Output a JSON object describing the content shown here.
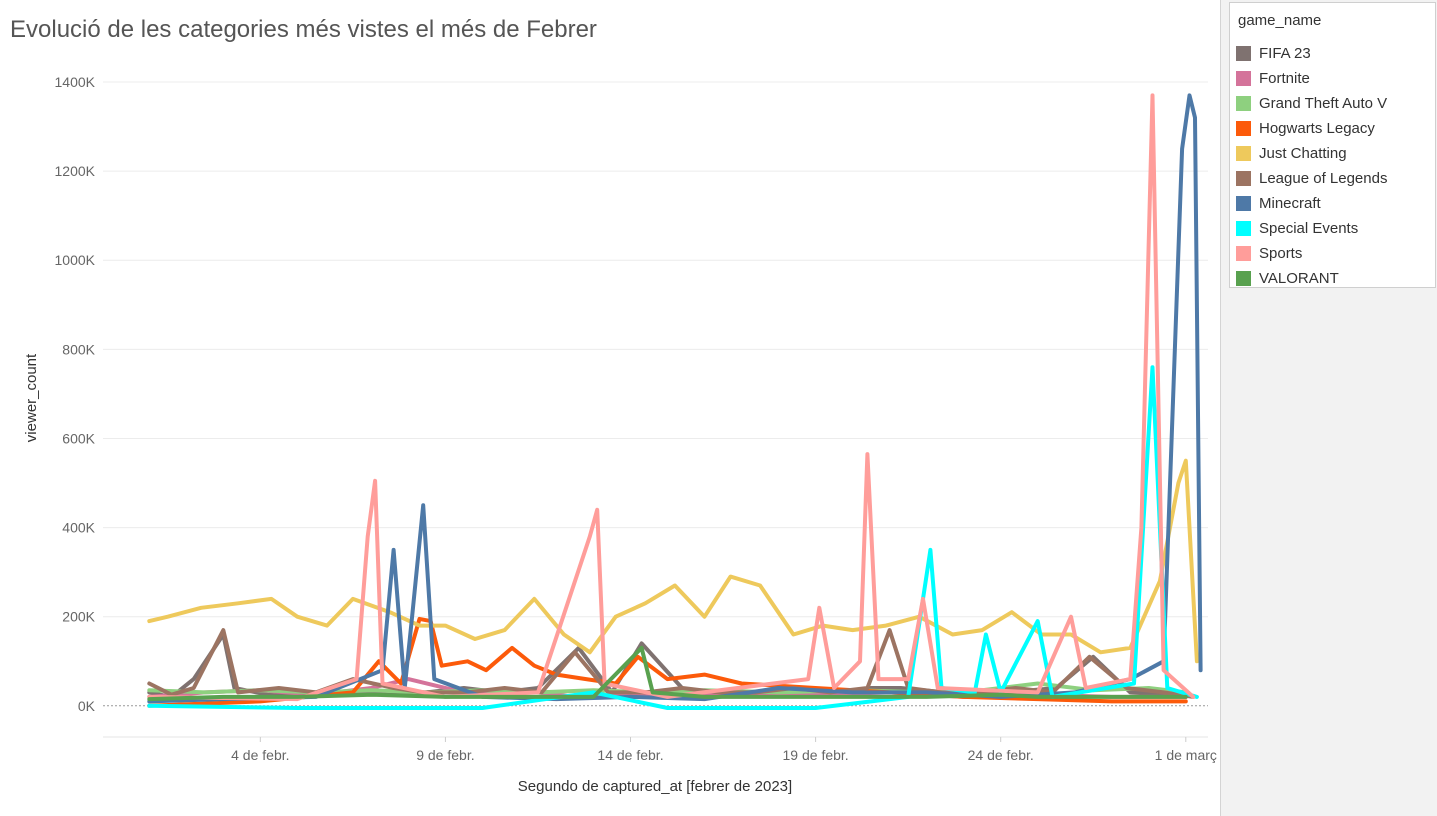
{
  "chart_data": {
    "type": "line",
    "title": "Evolució de les categories més vistes el més de Febrer",
    "xlabel": "Segundo de captured_at [febrer de 2023]",
    "ylabel": "viewer_count",
    "ylim": [
      -70000,
      1400000
    ],
    "xlim": [
      -0.25,
      29.6
    ],
    "x_unit": "days of February 2023 (1 = 1 de febr.)",
    "y_ticks": [
      {
        "value": 0,
        "label": "0K"
      },
      {
        "value": 200000,
        "label": "200K"
      },
      {
        "value": 400000,
        "label": "400K"
      },
      {
        "value": 600000,
        "label": "600K"
      },
      {
        "value": 800000,
        "label": "800K"
      },
      {
        "value": 1000000,
        "label": "1000K"
      },
      {
        "value": 1200000,
        "label": "1200K"
      },
      {
        "value": 1400000,
        "label": "1400K"
      }
    ],
    "x_ticks": [
      {
        "value": 4,
        "label": "4 de febr."
      },
      {
        "value": 9,
        "label": "9 de febr."
      },
      {
        "value": 14,
        "label": "14 de febr."
      },
      {
        "value": 19,
        "label": "19 de febr."
      },
      {
        "value": 24,
        "label": "24 de febr."
      },
      {
        "value": 29,
        "label": "1 de març"
      }
    ],
    "grid": true,
    "legend_position": "right",
    "legend_title": "game_name",
    "series": [
      {
        "name": "FIFA 23",
        "color": "#7f7270",
        "points": [
          [
            1.0,
            30000
          ],
          [
            1.6,
            20000
          ],
          [
            2.2,
            60000
          ],
          [
            3.0,
            160000
          ],
          [
            3.3,
            40000
          ],
          [
            4.2,
            25000
          ],
          [
            5.2,
            20000
          ],
          [
            6.4,
            30000
          ],
          [
            7.5,
            25000
          ],
          [
            8.5,
            30000
          ],
          [
            9.5,
            40000
          ],
          [
            10.5,
            30000
          ],
          [
            11.5,
            40000
          ],
          [
            12.6,
            130000
          ],
          [
            13.5,
            30000
          ],
          [
            14.3,
            140000
          ],
          [
            15.5,
            30000
          ],
          [
            17.5,
            25000
          ],
          [
            19.5,
            30000
          ],
          [
            20.5,
            40000
          ],
          [
            21.3,
            40000
          ],
          [
            22.5,
            30000
          ],
          [
            23.5,
            25000
          ],
          [
            25.5,
            40000
          ],
          [
            26.5,
            110000
          ],
          [
            27.5,
            30000
          ],
          [
            28.5,
            25000
          ],
          [
            29.0,
            20000
          ]
        ]
      },
      {
        "name": "Fortnite",
        "color": "#d4739a",
        "points": [
          [
            1.0,
            20000
          ],
          [
            2.5,
            30000
          ],
          [
            4.0,
            35000
          ],
          [
            5.5,
            25000
          ],
          [
            7.0,
            40000
          ],
          [
            8.0,
            60000
          ],
          [
            9.5,
            30000
          ],
          [
            11.0,
            35000
          ],
          [
            12.5,
            20000
          ],
          [
            14.0,
            25000
          ],
          [
            15.5,
            20000
          ],
          [
            17.0,
            30000
          ],
          [
            19.0,
            25000
          ],
          [
            21.0,
            30000
          ],
          [
            23.0,
            20000
          ],
          [
            25.0,
            25000
          ],
          [
            27.0,
            20000
          ],
          [
            29.0,
            20000
          ]
        ]
      },
      {
        "name": "Grand Theft Auto V",
        "color": "#8ed07f",
        "points": [
          [
            1.0,
            35000
          ],
          [
            2.5,
            30000
          ],
          [
            4.0,
            35000
          ],
          [
            5.5,
            30000
          ],
          [
            7.0,
            35000
          ],
          [
            8.5,
            30000
          ],
          [
            10.0,
            35000
          ],
          [
            11.5,
            30000
          ],
          [
            13.0,
            35000
          ],
          [
            14.5,
            30000
          ],
          [
            16.0,
            35000
          ],
          [
            18.0,
            30000
          ],
          [
            20.0,
            35000
          ],
          [
            22.0,
            30000
          ],
          [
            23.5,
            35000
          ],
          [
            25.0,
            50000
          ],
          [
            26.5,
            35000
          ],
          [
            28.0,
            40000
          ],
          [
            29.0,
            30000
          ]
        ]
      },
      {
        "name": "Hogwarts Legacy",
        "color": "#fc5a0a",
        "points": [
          [
            1.0,
            0
          ],
          [
            4.0,
            10000
          ],
          [
            6.5,
            30000
          ],
          [
            7.2,
            100000
          ],
          [
            7.8,
            50000
          ],
          [
            8.3,
            195000
          ],
          [
            8.6,
            190000
          ],
          [
            8.9,
            90000
          ],
          [
            9.6,
            100000
          ],
          [
            10.1,
            80000
          ],
          [
            10.8,
            130000
          ],
          [
            11.4,
            90000
          ],
          [
            12.0,
            70000
          ],
          [
            12.8,
            60000
          ],
          [
            13.6,
            50000
          ],
          [
            14.2,
            110000
          ],
          [
            15.0,
            60000
          ],
          [
            16.0,
            70000
          ],
          [
            17.0,
            50000
          ],
          [
            19.0,
            40000
          ],
          [
            21.0,
            30000
          ],
          [
            23.0,
            20000
          ],
          [
            25.0,
            15000
          ],
          [
            27.0,
            10000
          ],
          [
            29.0,
            10000
          ]
        ]
      },
      {
        "name": "Just Chatting",
        "color": "#eec95c",
        "points": [
          [
            1.0,
            190000
          ],
          [
            1.5,
            200000
          ],
          [
            2.4,
            220000
          ],
          [
            3.4,
            230000
          ],
          [
            4.3,
            240000
          ],
          [
            5.0,
            200000
          ],
          [
            5.8,
            180000
          ],
          [
            6.5,
            240000
          ],
          [
            7.5,
            210000
          ],
          [
            8.3,
            180000
          ],
          [
            9.0,
            180000
          ],
          [
            9.8,
            150000
          ],
          [
            10.6,
            170000
          ],
          [
            11.4,
            240000
          ],
          [
            12.2,
            160000
          ],
          [
            12.9,
            120000
          ],
          [
            13.6,
            200000
          ],
          [
            14.4,
            230000
          ],
          [
            15.2,
            270000
          ],
          [
            16.0,
            200000
          ],
          [
            16.7,
            290000
          ],
          [
            17.5,
            270000
          ],
          [
            18.4,
            160000
          ],
          [
            19.2,
            180000
          ],
          [
            20.0,
            170000
          ],
          [
            20.9,
            180000
          ],
          [
            21.8,
            200000
          ],
          [
            22.7,
            160000
          ],
          [
            23.5,
            170000
          ],
          [
            24.3,
            210000
          ],
          [
            25.1,
            160000
          ],
          [
            25.9,
            160000
          ],
          [
            26.7,
            120000
          ],
          [
            27.5,
            130000
          ],
          [
            28.3,
            280000
          ],
          [
            28.8,
            500000
          ],
          [
            29.0,
            550000
          ],
          [
            29.3,
            100000
          ]
        ]
      },
      {
        "name": "League of Legends",
        "color": "#9c7462",
        "points": [
          [
            1.0,
            50000
          ],
          [
            1.6,
            25000
          ],
          [
            2.2,
            40000
          ],
          [
            3.0,
            170000
          ],
          [
            3.4,
            30000
          ],
          [
            4.5,
            40000
          ],
          [
            5.5,
            30000
          ],
          [
            6.5,
            60000
          ],
          [
            7.6,
            40000
          ],
          [
            8.4,
            30000
          ],
          [
            9.6,
            30000
          ],
          [
            10.6,
            40000
          ],
          [
            11.6,
            30000
          ],
          [
            12.5,
            120000
          ],
          [
            13.4,
            30000
          ],
          [
            14.4,
            30000
          ],
          [
            15.4,
            40000
          ],
          [
            16.4,
            30000
          ],
          [
            17.4,
            30000
          ],
          [
            18.4,
            40000
          ],
          [
            19.4,
            30000
          ],
          [
            20.4,
            40000
          ],
          [
            21.0,
            170000
          ],
          [
            21.5,
            40000
          ],
          [
            22.4,
            30000
          ],
          [
            23.4,
            30000
          ],
          [
            24.4,
            40000
          ],
          [
            25.4,
            30000
          ],
          [
            26.4,
            110000
          ],
          [
            27.4,
            40000
          ],
          [
            28.4,
            30000
          ],
          [
            29.2,
            20000
          ]
        ]
      },
      {
        "name": "Minecraft",
        "color": "#4e79a7",
        "points": [
          [
            1.0,
            10000
          ],
          [
            3.0,
            15000
          ],
          [
            5.5,
            20000
          ],
          [
            7.3,
            80000
          ],
          [
            7.6,
            350000
          ],
          [
            7.9,
            40000
          ],
          [
            8.1,
            200000
          ],
          [
            8.4,
            450000
          ],
          [
            8.7,
            60000
          ],
          [
            10.0,
            20000
          ],
          [
            12.0,
            15000
          ],
          [
            14.0,
            20000
          ],
          [
            16.0,
            15000
          ],
          [
            18.0,
            40000
          ],
          [
            20.0,
            30000
          ],
          [
            22.0,
            30000
          ],
          [
            24.0,
            20000
          ],
          [
            26.0,
            30000
          ],
          [
            27.5,
            60000
          ],
          [
            28.4,
            100000
          ],
          [
            28.9,
            1250000
          ],
          [
            29.1,
            1370000
          ],
          [
            29.25,
            1320000
          ],
          [
            29.4,
            80000
          ]
        ]
      },
      {
        "name": "Special Events",
        "color": "#00ffff",
        "points": [
          [
            1.0,
            0
          ],
          [
            5.0,
            -5000
          ],
          [
            10.0,
            -5000
          ],
          [
            13.0,
            30000
          ],
          [
            15.0,
            -5000
          ],
          [
            19.0,
            -5000
          ],
          [
            21.5,
            20000
          ],
          [
            22.1,
            350000
          ],
          [
            22.4,
            40000
          ],
          [
            23.3,
            30000
          ],
          [
            23.6,
            160000
          ],
          [
            24.0,
            30000
          ],
          [
            25.0,
            190000
          ],
          [
            25.4,
            20000
          ],
          [
            27.6,
            50000
          ],
          [
            28.1,
            760000
          ],
          [
            28.5,
            40000
          ],
          [
            29.3,
            20000
          ]
        ]
      },
      {
        "name": "Sports",
        "color": "#ff9d9a",
        "points": [
          [
            1.0,
            20000
          ],
          [
            5.0,
            15000
          ],
          [
            6.6,
            60000
          ],
          [
            6.9,
            380000
          ],
          [
            7.1,
            505000
          ],
          [
            7.3,
            50000
          ],
          [
            9.0,
            20000
          ],
          [
            11.5,
            30000
          ],
          [
            12.9,
            380000
          ],
          [
            13.1,
            440000
          ],
          [
            13.3,
            50000
          ],
          [
            15.0,
            20000
          ],
          [
            18.8,
            60000
          ],
          [
            19.1,
            220000
          ],
          [
            19.5,
            40000
          ],
          [
            20.2,
            100000
          ],
          [
            20.4,
            565000
          ],
          [
            20.7,
            60000
          ],
          [
            21.5,
            60000
          ],
          [
            21.9,
            240000
          ],
          [
            22.3,
            40000
          ],
          [
            25.0,
            30000
          ],
          [
            25.9,
            200000
          ],
          [
            26.3,
            40000
          ],
          [
            27.5,
            60000
          ],
          [
            27.8,
            400000
          ],
          [
            28.1,
            1370000
          ],
          [
            28.4,
            80000
          ],
          [
            29.2,
            20000
          ]
        ]
      },
      {
        "name": "VALORANT",
        "color": "#59a14f",
        "points": [
          [
            1.0,
            15000
          ],
          [
            3.0,
            20000
          ],
          [
            5.0,
            20000
          ],
          [
            7.0,
            25000
          ],
          [
            9.0,
            20000
          ],
          [
            11.0,
            20000
          ],
          [
            13.0,
            20000
          ],
          [
            14.3,
            130000
          ],
          [
            14.6,
            30000
          ],
          [
            16.0,
            20000
          ],
          [
            18.0,
            20000
          ],
          [
            20.0,
            20000
          ],
          [
            22.0,
            20000
          ],
          [
            24.0,
            25000
          ],
          [
            25.0,
            20000
          ],
          [
            27.0,
            20000
          ],
          [
            29.0,
            20000
          ]
        ]
      }
    ]
  }
}
